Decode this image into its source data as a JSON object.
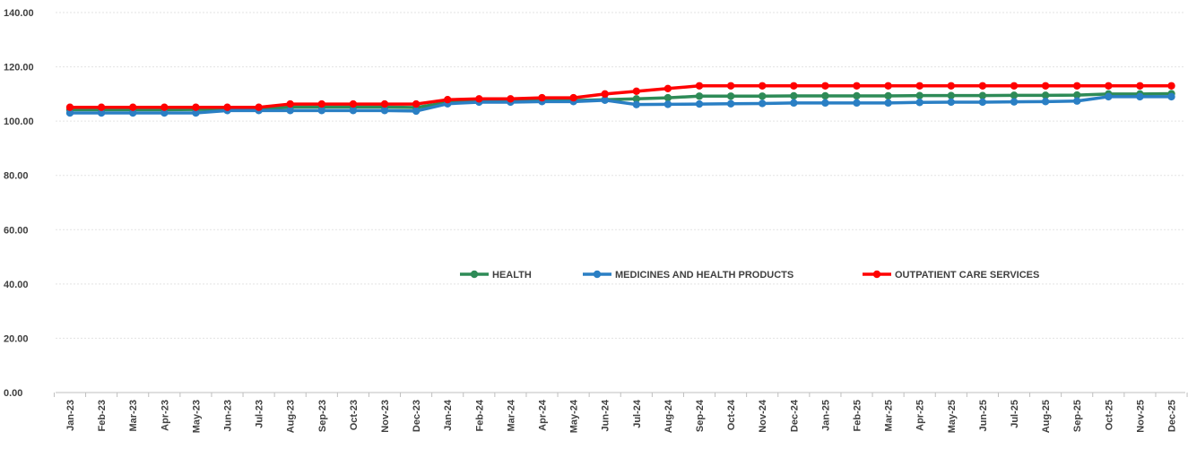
{
  "chart_data": {
    "type": "line",
    "title": "",
    "xlabel": "",
    "ylabel": "",
    "ylim": [
      0,
      140
    ],
    "y_ticks": [
      "0.00",
      "20.00",
      "40.00",
      "60.00",
      "80.00",
      "100.00",
      "120.00",
      "140.00"
    ],
    "y_tick_values": [
      0,
      20,
      40,
      60,
      80,
      100,
      120,
      140
    ],
    "grid": true,
    "legend_position": "middle",
    "categories": [
      "Jan-23",
      "Feb-23",
      "Mar-23",
      "Apr-23",
      "May-23",
      "Jun-23",
      "Jul-23",
      "Aug-23",
      "Sep-23",
      "Oct-23",
      "Nov-23",
      "Dec-23",
      "Jan-24",
      "Feb-24",
      "Mar-24",
      "Apr-24",
      "May-24",
      "Jun-24",
      "Jul-24",
      "Aug-24",
      "Sep-24",
      "Oct-24",
      "Nov-24",
      "Dec-24",
      "Jan-25",
      "Feb-25",
      "Mar-25",
      "Apr-25",
      "May-25",
      "Jun-25",
      "Jul-25",
      "Aug-25",
      "Sep-25",
      "Oct-25",
      "Nov-25",
      "Dec-25"
    ],
    "series": [
      {
        "name": "HEALTH",
        "color": "#2e8b57",
        "values": [
          104.2,
          104.2,
          104.2,
          104.2,
          104.3,
          104.3,
          104.3,
          105.2,
          105.2,
          105.2,
          105.2,
          105.0,
          106.9,
          107.2,
          107.3,
          107.6,
          107.6,
          107.9,
          108.2,
          108.6,
          109.2,
          109.2,
          109.2,
          109.3,
          109.3,
          109.3,
          109.3,
          109.4,
          109.4,
          109.4,
          109.5,
          109.5,
          109.6,
          110.0,
          110.0,
          110.1
        ]
      },
      {
        "name": "MEDICINES AND HEALTH PRODUCTS",
        "color": "#2a7fc4",
        "values": [
          103.0,
          103.0,
          103.0,
          103.0,
          103.0,
          103.9,
          103.9,
          103.9,
          103.9,
          103.9,
          103.9,
          103.7,
          106.4,
          107.0,
          107.0,
          107.2,
          107.2,
          107.7,
          106.1,
          106.2,
          106.3,
          106.4,
          106.5,
          106.7,
          106.7,
          106.7,
          106.7,
          106.9,
          107.0,
          107.0,
          107.1,
          107.2,
          107.4,
          109.0,
          109.0,
          109.0
        ]
      },
      {
        "name": "OUTPATIENT CARE SERVICES",
        "color": "#ff0000",
        "values": [
          105.1,
          105.1,
          105.1,
          105.1,
          105.1,
          105.1,
          105.1,
          106.3,
          106.3,
          106.3,
          106.3,
          106.3,
          107.9,
          108.2,
          108.2,
          108.6,
          108.6,
          110.0,
          111.0,
          112.0,
          113.0,
          113.0,
          113.0,
          113.0,
          113.0,
          113.0,
          113.0,
          113.0,
          113.0,
          113.0,
          113.0,
          113.0,
          113.0,
          113.0,
          113.0,
          113.0
        ]
      }
    ]
  }
}
